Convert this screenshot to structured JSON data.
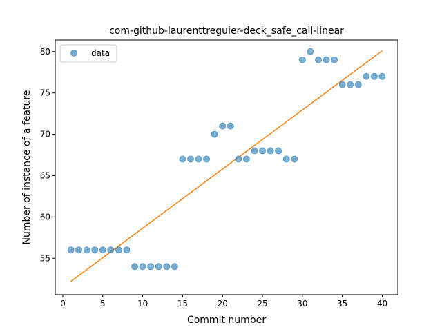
{
  "chart_data": {
    "type": "scatter",
    "title": "com-github-laurenttreguier-deck_safe_call-linear",
    "xlabel": "Commit number",
    "ylabel": "Number of instance of a feature",
    "xlim": [
      -0.95,
      41.95
    ],
    "ylim": [
      50.6,
      81.4
    ],
    "xticks": [
      0,
      5,
      10,
      15,
      20,
      25,
      30,
      35,
      40
    ],
    "yticks": [
      55,
      60,
      65,
      70,
      75,
      80
    ],
    "legend_position": "top-left",
    "legend": [
      {
        "label": "data",
        "marker": "circle",
        "color": "#1f77b4"
      }
    ],
    "series": [
      {
        "name": "data",
        "kind": "scatter",
        "color": "#1f77b4",
        "x": [
          1,
          2,
          3,
          4,
          5,
          6,
          7,
          8,
          9,
          10,
          11,
          12,
          13,
          14,
          15,
          16,
          17,
          18,
          19,
          20,
          21,
          22,
          23,
          24,
          25,
          26,
          27,
          28,
          29,
          30,
          31,
          32,
          33,
          34,
          35,
          36,
          37,
          38,
          39,
          40
        ],
        "y": [
          56,
          56,
          56,
          56,
          56,
          56,
          56,
          56,
          54,
          54,
          54,
          54,
          54,
          54,
          67,
          67,
          67,
          67,
          70,
          71,
          71,
          67,
          67,
          68,
          68,
          68,
          68,
          67,
          67,
          79,
          80,
          79,
          79,
          79,
          76,
          76,
          76,
          77,
          77,
          77
        ]
      },
      {
        "kind": "line",
        "color": "#ff7f0e",
        "x": [
          1,
          40
        ],
        "y": [
          52.2,
          80.1
        ]
      }
    ]
  }
}
